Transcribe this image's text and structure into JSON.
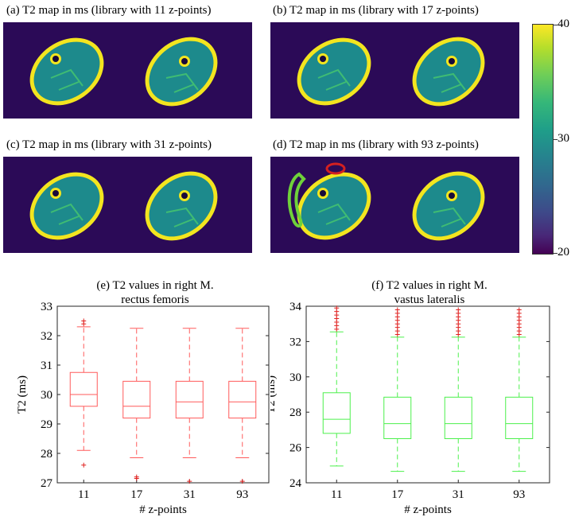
{
  "maps": [
    {
      "title": "(a) T2 map in ms (library with 11 z-points)"
    },
    {
      "title": "(b) T2 map in ms (library with 17 z-points)"
    },
    {
      "title": "(c) T2 map in ms (library with 31 z-points)"
    },
    {
      "title": "(d) T2 map in ms (library with 93 z-points)"
    }
  ],
  "colorbar": {
    "ticks": [
      "40",
      "30",
      "20"
    ],
    "colors": [
      "#440154",
      "#3e4989",
      "#31688e",
      "#26828e",
      "#1f9e89",
      "#35b779",
      "#6ece58",
      "#b5de2b",
      "#fde725"
    ]
  },
  "chart_data": [
    {
      "type": "boxplot",
      "title_line1": "(e) T2 values in right M.",
      "title_line2": "rectus femoris",
      "xlabel": "# z-points",
      "ylabel": "T2 (ms)",
      "ylim": [
        27,
        33
      ],
      "yticks": [
        "27",
        "28",
        "29",
        "30",
        "31",
        "32",
        "33"
      ],
      "color": "#ff5a5a",
      "categories": [
        "11",
        "17",
        "31",
        "93"
      ],
      "boxes": [
        {
          "q1": 29.6,
          "median": 30.0,
          "q3": 30.75,
          "whisker_low": 28.1,
          "whisker_high": 32.3,
          "outliers": [
            27.6,
            32.4,
            32.5
          ]
        },
        {
          "q1": 29.2,
          "median": 29.6,
          "q3": 30.45,
          "whisker_low": 27.85,
          "whisker_high": 32.25,
          "outliers": [
            27.15,
            27.2
          ]
        },
        {
          "q1": 29.2,
          "median": 29.75,
          "q3": 30.45,
          "whisker_low": 27.85,
          "whisker_high": 32.25,
          "outliers": [
            27.05
          ]
        },
        {
          "q1": 29.2,
          "median": 29.75,
          "q3": 30.45,
          "whisker_low": 27.85,
          "whisker_high": 32.25,
          "outliers": [
            27.05
          ]
        }
      ]
    },
    {
      "type": "boxplot",
      "title_line1": "(f) T2 values in right M.",
      "title_line2": "vastus lateralis",
      "xlabel": "# z-points",
      "ylabel": "T2 (ms)",
      "ylim": [
        24,
        34
      ],
      "yticks": [
        "24",
        "26",
        "28",
        "30",
        "32",
        "34"
      ],
      "color": "#4cf04c",
      "categories": [
        "11",
        "17",
        "31",
        "93"
      ],
      "boxes": [
        {
          "q1": 26.8,
          "median": 27.6,
          "q3": 29.1,
          "whisker_low": 24.95,
          "whisker_high": 32.55,
          "outliers": [
            32.7,
            32.9,
            33.1,
            33.3,
            33.5,
            33.7,
            33.9
          ]
        },
        {
          "q1": 26.5,
          "median": 27.35,
          "q3": 28.85,
          "whisker_low": 24.65,
          "whisker_high": 32.25,
          "outliers": [
            32.4,
            32.6,
            32.8,
            33.0,
            33.2,
            33.4,
            33.6,
            33.8
          ]
        },
        {
          "q1": 26.5,
          "median": 27.35,
          "q3": 28.85,
          "whisker_low": 24.65,
          "whisker_high": 32.25,
          "outliers": [
            32.4,
            32.6,
            32.8,
            33.0,
            33.2,
            33.4,
            33.6,
            33.8
          ]
        },
        {
          "q1": 26.5,
          "median": 27.35,
          "q3": 28.85,
          "whisker_low": 24.65,
          "whisker_high": 32.25,
          "outliers": [
            32.4,
            32.6,
            32.8,
            33.0,
            33.2,
            33.4,
            33.6,
            33.8
          ]
        }
      ]
    }
  ]
}
